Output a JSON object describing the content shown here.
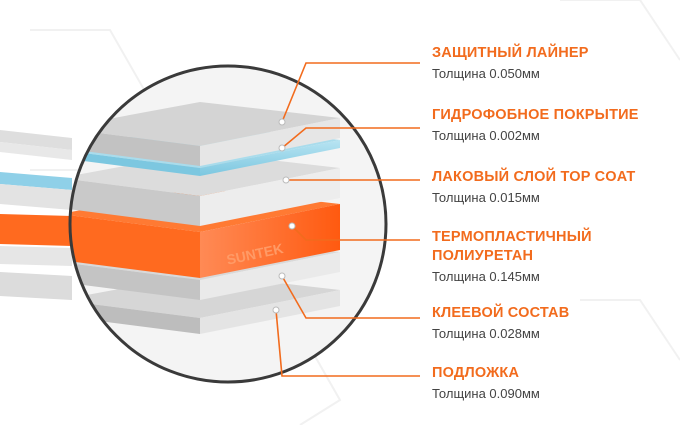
{
  "colors": {
    "accent": "#f26b1d",
    "water_layer": "#8fd0e8",
    "tpu_layer": "#ff6a1f",
    "film_gray": "#d9d9d9",
    "text": "#444444"
  },
  "watermark": "SUNTEK",
  "layers": [
    {
      "title": "ЗАЩИТНЫЙ ЛАЙНЕР",
      "thickness": "Толщина 0.050мм"
    },
    {
      "title": "ГИДРОФОБНОЕ ПОКРЫТИЕ",
      "thickness": "Толщина 0.002мм"
    },
    {
      "title": "ЛАКОВЫЙ СЛОЙ TOP COAT",
      "thickness": "Толщина 0.015мм"
    },
    {
      "title": "ТЕРМОПЛАСТИЧНЫЙ",
      "title2": "ПОЛИУРЕТАН",
      "thickness": "Толщина 0.145мм"
    },
    {
      "title": "КЛЕЕВОЙ СОСТАВ",
      "thickness": "Толщина 0.028мм"
    },
    {
      "title": "ПОДЛОЖКА",
      "thickness": "Толщина 0.090мм"
    }
  ]
}
